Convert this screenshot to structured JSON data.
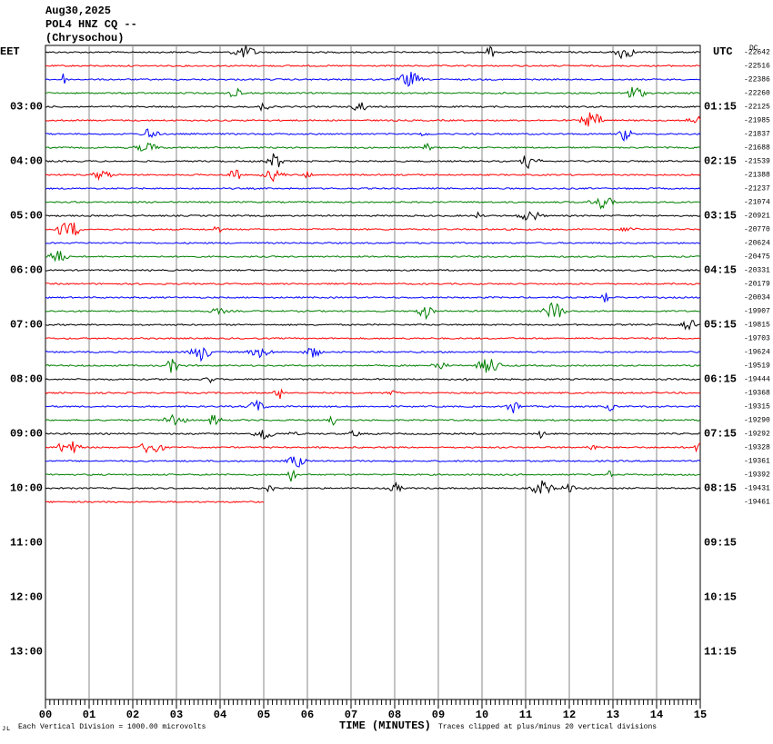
{
  "header": {
    "lines": [
      "Aug30,2025",
      "POL4 HNZ CQ --",
      "(Chrysochou)"
    ]
  },
  "left_axis": {
    "title": "EET",
    "labels": [
      "03:00",
      "04:00",
      "05:00",
      "06:00",
      "07:00",
      "08:00",
      "09:00",
      "10:00",
      "11:00",
      "12:00",
      "13:00"
    ]
  },
  "right_axis": {
    "title": "UTC",
    "dc": "DC",
    "labels": [
      "01:15",
      "02:15",
      "03:15",
      "04:15",
      "05:15",
      "06:15",
      "07:15",
      "08:15",
      "09:15",
      "10:15",
      "11:15"
    ],
    "offsets": [
      -22642,
      -22516,
      -22386,
      -22260,
      -22125,
      -21985,
      -21837,
      -21688,
      -21539,
      -21388,
      -21237,
      -21074,
      -20921,
      -20770,
      -20624,
      -20475,
      -20331,
      -20179,
      -20034,
      -19907,
      -19815,
      -19703,
      -19624,
      -19519,
      -19444,
      -19368,
      -19315,
      -19290,
      -19292,
      -19328,
      -19361,
      -19392,
      -19431,
      -19461
    ]
  },
  "x_axis": {
    "labels": [
      "00",
      "01",
      "02",
      "03",
      "04",
      "05",
      "06",
      "07",
      "08",
      "09",
      "10",
      "11",
      "12",
      "13",
      "14",
      "15"
    ],
    "title": "TIME (MINUTES)"
  },
  "footer": {
    "scale": "Each Vertical Division = 1000.00 microvolts",
    "clip": "Traces clipped at plus/minus 20 vertical divisions"
  }
}
